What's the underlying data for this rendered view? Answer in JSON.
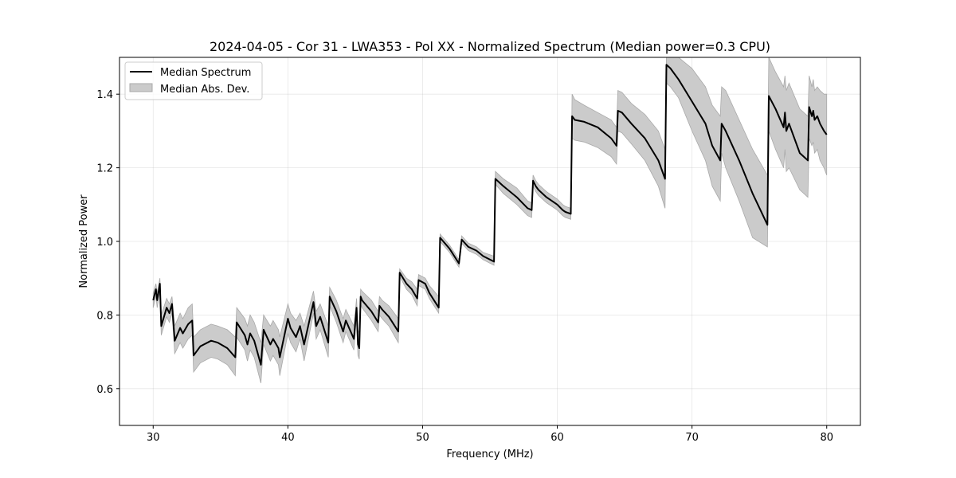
{
  "chart_data": {
    "type": "line",
    "title": "2024-04-05 - Cor 31 - LWA353 - Pol XX - Normalized Spectrum (Median power=0.3 CPU)",
    "xlabel": "Frequency (MHz)",
    "ylabel": "Normalized Power",
    "xlim": [
      27.5,
      82.5
    ],
    "ylim": [
      0.5,
      1.5
    ],
    "xticks": [
      30,
      40,
      50,
      60,
      70,
      80
    ],
    "yticks": [
      0.6,
      0.8,
      1.0,
      1.2,
      1.4
    ],
    "xtick_labels": [
      "30",
      "40",
      "50",
      "60",
      "70",
      "80"
    ],
    "ytick_labels": [
      "0.6",
      "0.8",
      "1.0",
      "1.2",
      "1.4"
    ],
    "grid": true,
    "legend_position": "top-left",
    "legend": [
      "Median Spectrum",
      "Median Abs. Dev."
    ],
    "series": [
      {
        "name": "Median Spectrum",
        "color": "#000000",
        "x": [
          30.0,
          30.2,
          30.3,
          30.5,
          30.6,
          31.0,
          31.2,
          31.4,
          31.6,
          32.0,
          32.2,
          32.6,
          32.9,
          33.0,
          33.5,
          34.3,
          34.8,
          35.5,
          36.1,
          36.2,
          36.8,
          37.0,
          37.2,
          37.5,
          38.0,
          38.2,
          38.7,
          38.9,
          39.3,
          39.4,
          40.0,
          40.2,
          40.6,
          40.9,
          41.2,
          41.9,
          42.1,
          42.4,
          43.0,
          43.1,
          43.6,
          44.1,
          44.3,
          44.9,
          45.1,
          45.2,
          45.3,
          45.4,
          45.5,
          46.2,
          46.7,
          46.8,
          47.0,
          47.5,
          48.2,
          48.3,
          48.8,
          49.2,
          49.6,
          49.7,
          50.2,
          50.5,
          51.2,
          51.3,
          52.0,
          52.7,
          52.9,
          53.4,
          54.0,
          54.5,
          55.3,
          55.4,
          56.0,
          57.0,
          57.8,
          58.1,
          58.2,
          58.4,
          58.5,
          58.6,
          59.2,
          60.0,
          60.4,
          60.6,
          61.0,
          61.1,
          61.3,
          62.0,
          63.0,
          64.0,
          64.4,
          64.5,
          64.8,
          65.5,
          66.5,
          67.5,
          68.0,
          68.1,
          68.4,
          69.0,
          70.0,
          71.0,
          71.5,
          72.1,
          72.2,
          72.5,
          73.5,
          74.5,
          75.6,
          75.7,
          76.2,
          76.8,
          76.9,
          77.0,
          77.2,
          78.0,
          78.6,
          78.7,
          78.9,
          79.0,
          79.1,
          79.3,
          79.5,
          79.8,
          80.0
        ],
        "values": [
          0.84,
          0.87,
          0.84,
          0.885,
          0.77,
          0.82,
          0.805,
          0.83,
          0.73,
          0.765,
          0.75,
          0.775,
          0.785,
          0.69,
          0.715,
          0.73,
          0.725,
          0.71,
          0.685,
          0.78,
          0.745,
          0.72,
          0.75,
          0.73,
          0.665,
          0.76,
          0.72,
          0.735,
          0.71,
          0.685,
          0.79,
          0.765,
          0.74,
          0.77,
          0.72,
          0.835,
          0.77,
          0.795,
          0.725,
          0.85,
          0.81,
          0.755,
          0.785,
          0.735,
          0.82,
          0.72,
          0.71,
          0.85,
          0.84,
          0.81,
          0.78,
          0.825,
          0.815,
          0.795,
          0.755,
          0.915,
          0.885,
          0.87,
          0.845,
          0.895,
          0.885,
          0.86,
          0.82,
          1.01,
          0.98,
          0.94,
          1.005,
          0.985,
          0.975,
          0.96,
          0.945,
          1.17,
          1.15,
          1.12,
          1.09,
          1.085,
          1.165,
          1.15,
          1.145,
          1.14,
          1.12,
          1.1,
          1.085,
          1.08,
          1.075,
          1.34,
          1.33,
          1.325,
          1.31,
          1.28,
          1.26,
          1.355,
          1.35,
          1.32,
          1.28,
          1.22,
          1.17,
          1.48,
          1.47,
          1.44,
          1.38,
          1.32,
          1.26,
          1.22,
          1.32,
          1.3,
          1.22,
          1.13,
          1.045,
          1.395,
          1.36,
          1.31,
          1.35,
          1.3,
          1.32,
          1.24,
          1.22,
          1.365,
          1.34,
          1.355,
          1.33,
          1.34,
          1.32,
          1.3,
          1.29
        ]
      },
      {
        "name": "Median Abs. Dev.",
        "color": "#cbcbcb",
        "x": [
          30.0,
          30.2,
          30.3,
          30.5,
          30.6,
          31.0,
          31.2,
          31.4,
          31.6,
          32.0,
          32.2,
          32.6,
          32.9,
          33.0,
          33.5,
          34.3,
          34.8,
          35.5,
          36.1,
          36.2,
          36.8,
          37.0,
          37.2,
          37.5,
          38.0,
          38.2,
          38.7,
          38.9,
          39.3,
          39.4,
          40.0,
          40.2,
          40.6,
          40.9,
          41.2,
          41.9,
          42.1,
          42.4,
          43.0,
          43.1,
          43.6,
          44.1,
          44.3,
          44.9,
          45.1,
          45.2,
          45.3,
          45.4,
          45.5,
          46.2,
          46.7,
          46.8,
          47.0,
          47.5,
          48.2,
          48.3,
          48.8,
          49.2,
          49.6,
          49.7,
          50.2,
          50.5,
          51.2,
          51.3,
          52.0,
          52.7,
          52.9,
          53.4,
          54.0,
          54.5,
          55.3,
          55.4,
          56.0,
          57.0,
          57.8,
          58.1,
          58.2,
          58.4,
          58.5,
          58.6,
          59.2,
          60.0,
          60.4,
          60.6,
          61.0,
          61.1,
          61.3,
          62.0,
          63.0,
          64.0,
          64.4,
          64.5,
          64.8,
          65.5,
          66.5,
          67.5,
          68.0,
          68.1,
          68.4,
          69.0,
          70.0,
          71.0,
          71.5,
          72.1,
          72.2,
          72.5,
          73.5,
          74.5,
          75.6,
          75.7,
          76.2,
          76.8,
          76.9,
          77.0,
          77.2,
          78.0,
          78.6,
          78.7,
          78.9,
          79.0,
          79.1,
          79.3,
          79.5,
          79.8,
          80.0
        ],
        "upper": [
          0.86,
          0.885,
          0.86,
          0.9,
          0.8,
          0.845,
          0.83,
          0.85,
          0.77,
          0.805,
          0.79,
          0.82,
          0.83,
          0.74,
          0.76,
          0.775,
          0.77,
          0.76,
          0.74,
          0.82,
          0.79,
          0.77,
          0.8,
          0.78,
          0.725,
          0.8,
          0.77,
          0.785,
          0.76,
          0.74,
          0.83,
          0.805,
          0.785,
          0.805,
          0.77,
          0.865,
          0.81,
          0.83,
          0.77,
          0.875,
          0.84,
          0.79,
          0.815,
          0.77,
          0.845,
          0.76,
          0.75,
          0.87,
          0.865,
          0.84,
          0.81,
          0.85,
          0.84,
          0.825,
          0.79,
          0.925,
          0.9,
          0.89,
          0.87,
          0.91,
          0.9,
          0.88,
          0.85,
          1.02,
          0.99,
          0.95,
          1.015,
          0.995,
          0.985,
          0.97,
          0.96,
          1.19,
          1.17,
          1.145,
          1.11,
          1.105,
          1.18,
          1.165,
          1.16,
          1.155,
          1.135,
          1.115,
          1.1,
          1.095,
          1.09,
          1.4,
          1.385,
          1.37,
          1.35,
          1.33,
          1.31,
          1.41,
          1.405,
          1.375,
          1.345,
          1.3,
          1.25,
          1.5,
          1.5,
          1.5,
          1.47,
          1.42,
          1.37,
          1.34,
          1.42,
          1.41,
          1.33,
          1.25,
          1.18,
          1.5,
          1.46,
          1.42,
          1.45,
          1.41,
          1.43,
          1.36,
          1.34,
          1.45,
          1.42,
          1.44,
          1.41,
          1.42,
          1.41,
          1.4,
          1.4
        ],
        "lower": [
          0.82,
          0.85,
          0.82,
          0.865,
          0.745,
          0.795,
          0.78,
          0.805,
          0.695,
          0.725,
          0.71,
          0.735,
          0.745,
          0.645,
          0.67,
          0.685,
          0.68,
          0.665,
          0.635,
          0.74,
          0.705,
          0.675,
          0.705,
          0.685,
          0.615,
          0.72,
          0.675,
          0.69,
          0.665,
          0.635,
          0.75,
          0.725,
          0.7,
          0.735,
          0.675,
          0.805,
          0.735,
          0.76,
          0.685,
          0.825,
          0.78,
          0.725,
          0.755,
          0.705,
          0.795,
          0.69,
          0.68,
          0.83,
          0.82,
          0.785,
          0.755,
          0.8,
          0.79,
          0.77,
          0.725,
          0.905,
          0.87,
          0.855,
          0.825,
          0.88,
          0.87,
          0.845,
          0.805,
          1.0,
          0.97,
          0.93,
          0.995,
          0.975,
          0.965,
          0.95,
          0.935,
          1.155,
          1.13,
          1.1,
          1.07,
          1.065,
          1.15,
          1.135,
          1.13,
          1.125,
          1.105,
          1.085,
          1.07,
          1.065,
          1.06,
          1.28,
          1.275,
          1.27,
          1.255,
          1.23,
          1.21,
          1.3,
          1.295,
          1.265,
          1.22,
          1.15,
          1.09,
          1.43,
          1.42,
          1.39,
          1.3,
          1.22,
          1.15,
          1.11,
          1.24,
          1.2,
          1.11,
          1.01,
          0.985,
          1.3,
          1.25,
          1.2,
          1.25,
          1.19,
          1.2,
          1.14,
          1.12,
          1.28,
          1.26,
          1.27,
          1.24,
          1.25,
          1.22,
          1.2,
          1.18
        ]
      }
    ]
  }
}
